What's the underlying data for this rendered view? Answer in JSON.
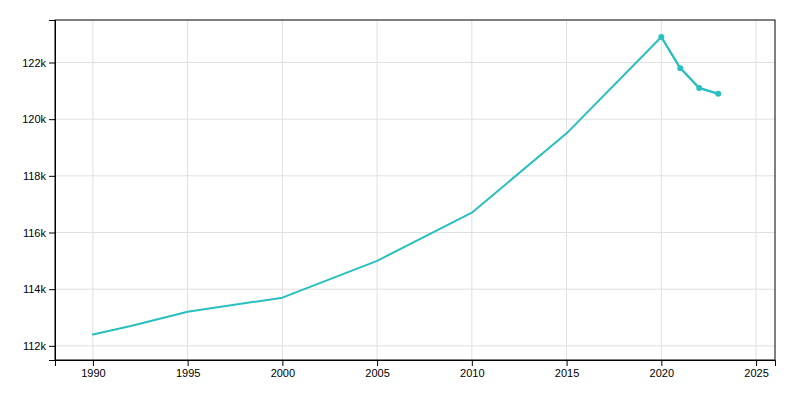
{
  "chart_data": {
    "type": "line",
    "x": [
      1990,
      1992,
      1995,
      2000,
      2005,
      2010,
      2015,
      2020,
      2021,
      2022,
      2023
    ],
    "series": [
      {
        "color": "#2abfbf",
        "values": [
          112400,
          112700,
          113200,
          113700,
          115000,
          116700,
          119500,
          122900,
          121800,
          121100,
          120900
        ]
      },
      {
        "color": "#2abfbf",
        "marker": "circle",
        "values": [
          null,
          null,
          null,
          null,
          null,
          null,
          null,
          122900,
          121800,
          121100,
          120900
        ]
      }
    ],
    "xlim": [
      1988,
      2026
    ],
    "xticks": [
      1990,
      1995,
      2000,
      2005,
      2010,
      2015,
      2020,
      2025
    ],
    "ylim": [
      111500,
      123500
    ],
    "yticks": [
      {
        "value": 112000,
        "label": "112k"
      },
      {
        "value": 114000,
        "label": "114k"
      },
      {
        "value": 116000,
        "label": "116k"
      },
      {
        "value": 118000,
        "label": "118k"
      },
      {
        "value": 120000,
        "label": "120k"
      },
      {
        "value": 122000,
        "label": "122k"
      }
    ],
    "grid": true
  }
}
